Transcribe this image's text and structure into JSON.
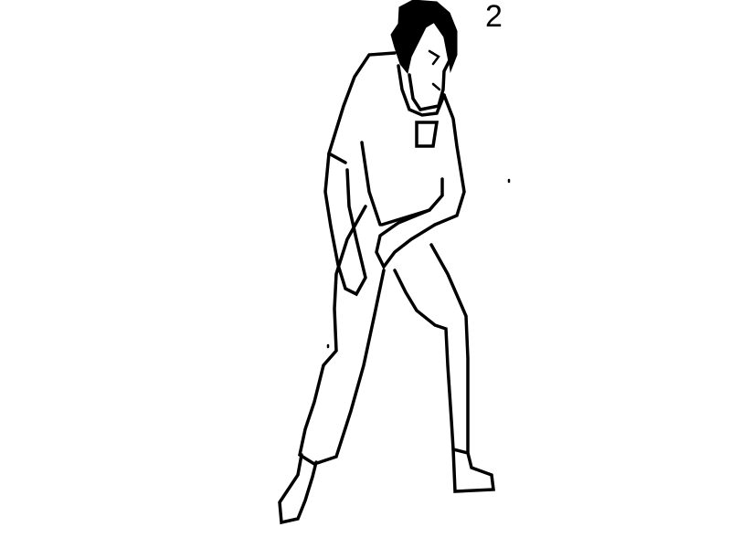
{
  "frame": {
    "number": "2"
  },
  "drawing": {
    "ink_color": "#000000",
    "background_color": "#ffffff"
  }
}
